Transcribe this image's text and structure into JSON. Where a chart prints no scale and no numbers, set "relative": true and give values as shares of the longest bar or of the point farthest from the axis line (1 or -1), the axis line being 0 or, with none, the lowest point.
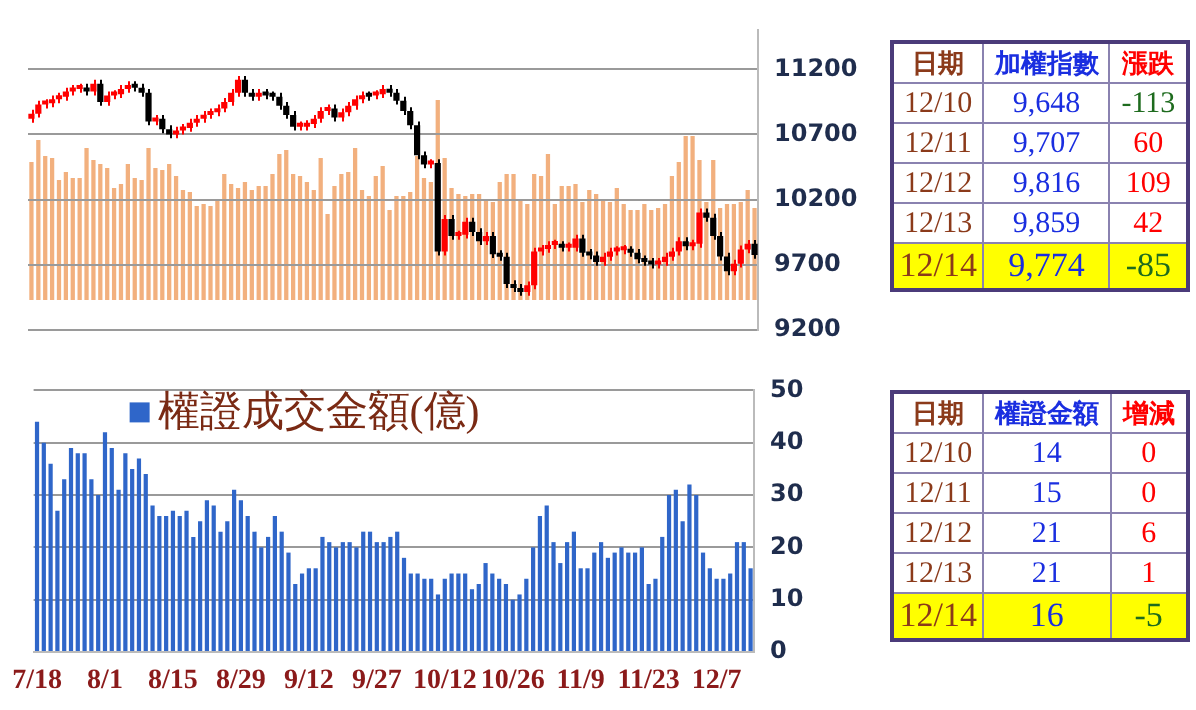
{
  "chart_data": [
    {
      "type": "bar",
      "relative": true,
      "color": "#f2b07e",
      "tick_labels": false,
      "values": [
        0.69,
        0.8,
        0.72,
        0.71,
        0.6,
        0.64,
        0.61,
        0.61,
        0.76,
        0.7,
        0.68,
        0.66,
        0.56,
        0.58,
        0.68,
        0.61,
        0.6,
        0.76,
        0.66,
        0.65,
        0.68,
        0.62,
        0.55,
        0.54,
        0.47,
        0.48,
        0.47,
        0.5,
        0.63,
        0.58,
        0.56,
        0.59,
        0.55,
        0.57,
        0.57,
        0.63,
        0.73,
        0.75,
        0.63,
        0.62,
        0.59,
        0.55,
        0.71,
        0.43,
        0.57,
        0.63,
        0.64,
        0.76,
        0.55,
        0.52,
        0.62,
        0.67,
        0.45,
        0.52,
        0.52,
        0.54,
        0.72,
        0.61,
        0.59,
        1,
        0.71,
        0.56,
        0.53,
        0.52,
        0.53,
        0.53,
        0.5,
        0.49,
        0.59,
        0.63,
        0.63,
        0.5,
        0.48,
        0.63,
        0.62,
        0.73,
        0.48,
        0.57,
        0.57,
        0.58,
        0.49,
        0.55,
        0.53,
        0.5,
        0.49,
        0.56,
        0.48,
        0.45,
        0.45,
        0.48,
        0.45,
        0.46,
        0.48,
        0.62,
        0.69,
        0.82,
        0.82,
        0.7,
        0.49,
        0.7,
        0.46,
        0.48,
        0.48,
        0.49,
        0.55,
        0.46
      ]
    },
    {
      "type": "candlestick",
      "tick_labels": "y",
      "grid": "y",
      "ylim": [
        9200,
        11500
      ],
      "yticks": [
        9200,
        9700,
        10200,
        10700,
        11200
      ],
      "ohlc": [
        [
          10820,
          10890,
          10790,
          10860
        ],
        [
          10860,
          10960,
          10830,
          10930
        ],
        [
          10930,
          10970,
          10900,
          10940
        ],
        [
          10940,
          11000,
          10910,
          10970
        ],
        [
          10970,
          11020,
          10940,
          10990
        ],
        [
          10990,
          11060,
          10960,
          11030
        ],
        [
          11030,
          11080,
          11000,
          11050
        ],
        [
          11050,
          11090,
          11020,
          11060
        ],
        [
          11060,
          11090,
          11000,
          11030
        ],
        [
          11030,
          11120,
          11000,
          11090
        ],
        [
          11090,
          11120,
          10920,
          10950
        ],
        [
          10950,
          11030,
          10920,
          11000
        ],
        [
          11000,
          11040,
          10970,
          11010
        ],
        [
          11010,
          11080,
          10980,
          11050
        ],
        [
          11050,
          11110,
          11020,
          11080
        ],
        [
          11080,
          11110,
          11030,
          11060
        ],
        [
          11060,
          11090,
          10990,
          11020
        ],
        [
          11020,
          11050,
          10770,
          10800
        ],
        [
          10800,
          10850,
          10770,
          10820
        ],
        [
          10820,
          10850,
          10710,
          10740
        ],
        [
          10740,
          10770,
          10670,
          10700
        ],
        [
          10700,
          10760,
          10670,
          10730
        ],
        [
          10730,
          10780,
          10700,
          10750
        ],
        [
          10750,
          10820,
          10720,
          10790
        ],
        [
          10790,
          10850,
          10760,
          10820
        ],
        [
          10820,
          10880,
          10790,
          10850
        ],
        [
          10850,
          10900,
          10820,
          10870
        ],
        [
          10870,
          10930,
          10840,
          10900
        ],
        [
          10900,
          10980,
          10870,
          10950
        ],
        [
          10950,
          11050,
          10920,
          11020
        ],
        [
          11020,
          11150,
          10990,
          11120
        ],
        [
          11120,
          11150,
          10990,
          11020
        ],
        [
          11020,
          11050,
          10960,
          10990
        ],
        [
          10990,
          11050,
          10960,
          11020
        ],
        [
          11020,
          11050,
          10970,
          11000
        ],
        [
          11000,
          11030,
          10960,
          10990
        ],
        [
          10990,
          11020,
          10890,
          10920
        ],
        [
          10920,
          10950,
          10820,
          10850
        ],
        [
          10850,
          10880,
          10730,
          10760
        ],
        [
          10760,
          10800,
          10730,
          10770
        ],
        [
          10760,
          10810,
          10730,
          10780
        ],
        [
          10780,
          10850,
          10750,
          10820
        ],
        [
          10820,
          10910,
          10790,
          10880
        ],
        [
          10880,
          10930,
          10850,
          10900
        ],
        [
          10900,
          10930,
          10800,
          10830
        ],
        [
          10830,
          10900,
          10800,
          10870
        ],
        [
          10870,
          10950,
          10840,
          10920
        ],
        [
          10920,
          11000,
          10890,
          10970
        ],
        [
          10970,
          11030,
          10940,
          11000
        ],
        [
          11000,
          11030,
          10960,
          10990
        ],
        [
          11000,
          11040,
          10970,
          11010
        ],
        [
          11010,
          11080,
          10980,
          11050
        ],
        [
          11050,
          11080,
          10990,
          11020
        ],
        [
          11020,
          11050,
          10930,
          10960
        ],
        [
          10960,
          10990,
          10850,
          10880
        ],
        [
          10880,
          10910,
          10740,
          10770
        ],
        [
          10770,
          10800,
          10510,
          10540
        ],
        [
          10540,
          10570,
          10440,
          10470
        ],
        [
          10470,
          10510,
          10440,
          10480
        ],
        [
          10480,
          10510,
          9770,
          9800
        ],
        [
          9800,
          10080,
          9770,
          10050
        ],
        [
          10050,
          10080,
          9890,
          9920
        ],
        [
          9920,
          9960,
          9890,
          9930
        ],
        [
          9930,
          10060,
          9900,
          10030
        ],
        [
          10030,
          10060,
          9920,
          9950
        ],
        [
          9950,
          9980,
          9850,
          9880
        ],
        [
          9880,
          9950,
          9850,
          9920
        ],
        [
          9920,
          9950,
          9750,
          9780
        ],
        [
          9780,
          9810,
          9730,
          9760
        ],
        [
          9760,
          9790,
          9520,
          9550
        ],
        [
          9550,
          9580,
          9490,
          9520
        ],
        [
          9520,
          9550,
          9460,
          9490
        ],
        [
          9490,
          9570,
          9460,
          9540
        ],
        [
          9540,
          9830,
          9510,
          9800
        ],
        [
          9800,
          9850,
          9770,
          9820
        ],
        [
          9820,
          9880,
          9790,
          9850
        ],
        [
          9850,
          9890,
          9820,
          9860
        ],
        [
          9850,
          9880,
          9800,
          9830
        ],
        [
          9830,
          9870,
          9800,
          9840
        ],
        [
          9830,
          9930,
          9800,
          9900
        ],
        [
          9900,
          9930,
          9760,
          9790
        ],
        [
          9790,
          9820,
          9740,
          9770
        ],
        [
          9770,
          9800,
          9690,
          9720
        ],
        [
          9720,
          9790,
          9690,
          9760
        ],
        [
          9760,
          9830,
          9730,
          9800
        ],
        [
          9800,
          9840,
          9770,
          9810
        ],
        [
          9810,
          9850,
          9780,
          9820
        ],
        [
          9810,
          9840,
          9760,
          9790
        ],
        [
          9790,
          9820,
          9710,
          9740
        ],
        [
          9740,
          9770,
          9690,
          9720
        ],
        [
          9720,
          9750,
          9670,
          9700
        ],
        [
          9700,
          9750,
          9670,
          9720
        ],
        [
          9720,
          9790,
          9690,
          9760
        ],
        [
          9760,
          9830,
          9730,
          9800
        ],
        [
          9800,
          9910,
          9770,
          9880
        ],
        [
          9880,
          9910,
          9810,
          9840
        ],
        [
          9840,
          9890,
          9810,
          9860
        ],
        [
          9860,
          10130,
          9830,
          10100
        ],
        [
          10100,
          10130,
          10030,
          10060
        ],
        [
          10060,
          10090,
          9890,
          9920
        ],
        [
          9920,
          9950,
          9731,
          9761
        ],
        [
          9761,
          9791,
          9618,
          9648
        ],
        [
          9648,
          9737,
          9618,
          9707
        ],
        [
          9707,
          9846,
          9677,
          9816
        ],
        [
          9816,
          9889,
          9786,
          9859
        ],
        [
          9859,
          9889,
          9744,
          9774
        ]
      ]
    },
    {
      "type": "bar",
      "grid": "y",
      "legend": "top left",
      "ylim": [
        0,
        50
      ],
      "yticks": [
        0,
        10,
        20,
        30,
        40,
        50
      ],
      "categories": [
        "7/18",
        null,
        null,
        null,
        null,
        null,
        null,
        null,
        null,
        null,
        "8/1",
        null,
        null,
        null,
        null,
        null,
        null,
        null,
        null,
        null,
        "8/15",
        null,
        null,
        null,
        null,
        null,
        null,
        null,
        null,
        null,
        "8/29",
        null,
        null,
        null,
        null,
        null,
        null,
        null,
        null,
        null,
        "9/12",
        null,
        null,
        null,
        null,
        null,
        null,
        null,
        null,
        null,
        "9/27",
        null,
        null,
        null,
        null,
        null,
        null,
        null,
        null,
        null,
        "10/12",
        null,
        null,
        null,
        null,
        null,
        null,
        null,
        null,
        null,
        "10/26",
        null,
        null,
        null,
        null,
        null,
        null,
        null,
        null,
        null,
        "11/9",
        null,
        null,
        null,
        null,
        null,
        null,
        null,
        null,
        null,
        "11/23",
        null,
        null,
        null,
        null,
        null,
        null,
        null,
        null,
        null,
        "12/7",
        null,
        null,
        null,
        null,
        null
      ],
      "series": [
        {
          "name": "權證成交金額(億)",
          "color": "#2f66c9",
          "values": [
            44,
            40,
            36,
            27,
            33,
            39,
            38,
            38,
            33,
            30,
            42,
            39,
            31,
            38,
            35,
            37,
            34,
            28,
            26,
            26,
            27,
            26,
            27,
            22,
            25,
            29,
            28,
            23,
            25,
            31,
            29,
            26,
            23,
            20,
            22,
            26,
            23,
            19,
            13,
            15,
            16,
            16,
            22,
            21,
            20,
            21,
            21,
            20,
            23,
            23,
            21,
            21,
            22,
            23,
            18,
            15,
            15,
            14,
            14,
            11,
            14,
            15,
            15,
            15,
            12,
            13,
            17,
            15,
            14,
            13,
            10,
            11,
            14,
            20,
            26,
            28,
            21,
            17,
            21,
            23,
            16,
            16,
            19,
            21,
            18,
            19,
            20,
            19,
            19,
            20,
            13,
            14,
            22,
            30,
            31,
            25,
            32,
            30,
            19,
            16,
            14,
            14,
            15,
            21,
            21,
            16
          ]
        }
      ]
    },
    {
      "type": "other",
      "annotations": [
        "日期",
        "加權指數",
        "漲跌",
        "12/10",
        "9,648",
        "-113",
        "12/11",
        "9,707",
        "60",
        "12/12",
        "9,816",
        "109",
        "12/13",
        "9,859",
        "42",
        "12/14",
        "9,774",
        "-85"
      ]
    },
    {
      "type": "other",
      "annotations": [
        "日期",
        "權證金額",
        "增減",
        "12/10",
        "14",
        "0",
        "12/11",
        "15",
        "0",
        "12/12",
        "21",
        "6",
        "12/13",
        "21",
        "1",
        "12/14",
        "16",
        "-5"
      ]
    }
  ]
}
